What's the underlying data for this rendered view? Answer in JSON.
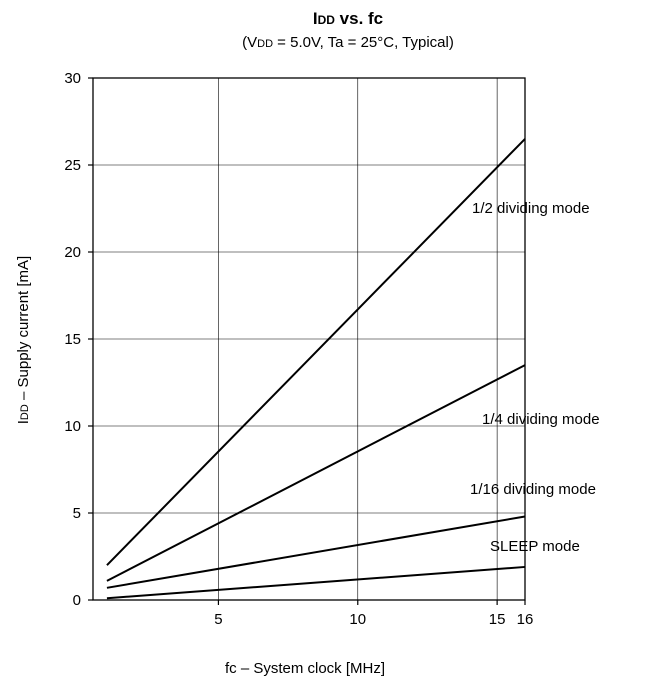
{
  "chart_data": {
    "type": "line",
    "title_main": "I",
    "title_sub": "DD",
    "title_rest": " vs. fc",
    "subtitle_open": "(V",
    "subtitle_sub": "DD",
    "subtitle_rest": " = 5.0V, Ta = 25°C, Typical)",
    "xlabel": "fc – System clock [MHz]",
    "ylabel_prefix": "I",
    "ylabel_sub": "DD",
    "ylabel_rest": " – Supply current [mA]",
    "xlim": [
      0.5,
      16
    ],
    "ylim": [
      0,
      30
    ],
    "x_ticks": [
      {
        "value": 5,
        "label": "5"
      },
      {
        "value": 10,
        "label": "10"
      },
      {
        "value": 15,
        "label": "15"
      },
      {
        "value": 16,
        "label": "16"
      }
    ],
    "y_ticks": [
      {
        "value": 0,
        "label": "0"
      },
      {
        "value": 5,
        "label": "5"
      },
      {
        "value": 10,
        "label": "10"
      },
      {
        "value": 15,
        "label": "15"
      },
      {
        "value": 20,
        "label": "20"
      },
      {
        "value": 25,
        "label": "25"
      },
      {
        "value": 30,
        "label": "30"
      }
    ],
    "x_grid": [
      5,
      10,
      15
    ],
    "y_grid": [
      5,
      10,
      15,
      20,
      25
    ],
    "grid": true,
    "series": [
      {
        "name": "1/2 dividing mode",
        "x": [
          1,
          16
        ],
        "y": [
          2.0,
          26.5
        ],
        "label_anchor": "upper right, below line"
      },
      {
        "name": "1/4 dividing mode",
        "x": [
          1,
          16
        ],
        "y": [
          1.1,
          13.5
        ],
        "label_anchor": "right, below line"
      },
      {
        "name": "1/16 dividing mode",
        "x": [
          1,
          16
        ],
        "y": [
          0.7,
          4.8
        ],
        "label_anchor": "right, above line"
      },
      {
        "name": "SLEEP mode",
        "x": [
          1,
          16
        ],
        "y": [
          0.1,
          1.9
        ],
        "label_anchor": "right, above line"
      }
    ],
    "line_color": "#000000",
    "grid_color": "#000000"
  }
}
